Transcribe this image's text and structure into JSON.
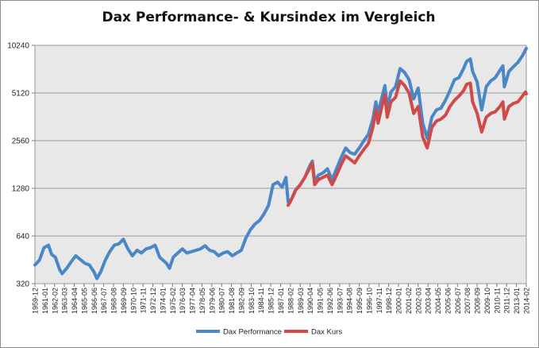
{
  "chart_data": {
    "type": "line",
    "title": "Dax Performance- & Kursindex im Vergleich",
    "xlabel": "",
    "ylabel": "",
    "yscale": "log2",
    "yticks": [
      320,
      640,
      1280,
      2560,
      5120,
      10240
    ],
    "ylim": [
      320,
      10240
    ],
    "xlim": [
      "1959-12",
      "2014-02"
    ],
    "grid": "horizontal",
    "legend_position": "bottom",
    "xtick_labels": [
      "1959-12",
      "1961-01",
      "1962-02",
      "1963-03",
      "1964-04",
      "1965-05",
      "1966-06",
      "1967-07",
      "1968-08",
      "1969-09",
      "1970-10",
      "1971-11",
      "1972-12",
      "1974-01",
      "1975-02",
      "1976-03",
      "1977-04",
      "1978-05",
      "1979-06",
      "1980-07",
      "1981-08",
      "1982-09",
      "1983-10",
      "1984-11",
      "1985-12",
      "1987-01",
      "1988-02",
      "1989-03",
      "1990-04",
      "1991-05",
      "1992-06",
      "1993-07",
      "1994-08",
      "1995-09",
      "1996-10",
      "1997-11",
      "1998-12",
      "2000-01",
      "2001-02",
      "2002-03",
      "2003-04",
      "2004-05",
      "2005-06",
      "2006-07",
      "2007-08",
      "2008-09",
      "2009-10",
      "2010-11",
      "2011-12",
      "2013-01",
      "2014-02"
    ],
    "series": [
      {
        "name": "Dax Performance",
        "color": "#4a87c7",
        "points": [
          [
            "1959-12",
            420
          ],
          [
            "1960-06",
            450
          ],
          [
            "1960-12",
            540
          ],
          [
            "1961-06",
            560
          ],
          [
            "1961-10",
            490
          ],
          [
            "1962-03",
            470
          ],
          [
            "1962-09",
            390
          ],
          [
            "1962-12",
            370
          ],
          [
            "1963-06",
            400
          ],
          [
            "1963-12",
            440
          ],
          [
            "1964-06",
            480
          ],
          [
            "1964-12",
            455
          ],
          [
            "1965-06",
            430
          ],
          [
            "1965-12",
            420
          ],
          [
            "1966-06",
            380
          ],
          [
            "1966-10",
            345
          ],
          [
            "1967-03",
            380
          ],
          [
            "1967-09",
            450
          ],
          [
            "1968-03",
            510
          ],
          [
            "1968-09",
            560
          ],
          [
            "1969-03",
            570
          ],
          [
            "1969-09",
            610
          ],
          [
            "1970-03",
            530
          ],
          [
            "1970-09",
            480
          ],
          [
            "1971-03",
            520
          ],
          [
            "1971-09",
            500
          ],
          [
            "1972-03",
            530
          ],
          [
            "1972-09",
            540
          ],
          [
            "1973-03",
            560
          ],
          [
            "1973-09",
            470
          ],
          [
            "1974-06",
            430
          ],
          [
            "1974-10",
            400
          ],
          [
            "1975-03",
            470
          ],
          [
            "1975-09",
            500
          ],
          [
            "1976-03",
            530
          ],
          [
            "1976-09",
            500
          ],
          [
            "1977-03",
            510
          ],
          [
            "1977-09",
            520
          ],
          [
            "1978-03",
            530
          ],
          [
            "1978-09",
            555
          ],
          [
            "1979-03",
            520
          ],
          [
            "1979-09",
            510
          ],
          [
            "1980-03",
            480
          ],
          [
            "1980-09",
            500
          ],
          [
            "1981-03",
            510
          ],
          [
            "1981-09",
            480
          ],
          [
            "1982-03",
            500
          ],
          [
            "1982-09",
            520
          ],
          [
            "1983-03",
            620
          ],
          [
            "1983-09",
            700
          ],
          [
            "1984-03",
            760
          ],
          [
            "1984-09",
            800
          ],
          [
            "1985-03",
            880
          ],
          [
            "1985-09",
            1000
          ],
          [
            "1986-03",
            1350
          ],
          [
            "1986-09",
            1400
          ],
          [
            "1987-03",
            1300
          ],
          [
            "1987-08",
            1500
          ],
          [
            "1987-11",
            1050
          ],
          [
            "1988-03",
            1080
          ],
          [
            "1988-09",
            1250
          ],
          [
            "1989-03",
            1350
          ],
          [
            "1989-09",
            1500
          ],
          [
            "1990-03",
            1750
          ],
          [
            "1990-07",
            1900
          ],
          [
            "1990-10",
            1400
          ],
          [
            "1991-03",
            1550
          ],
          [
            "1991-09",
            1600
          ],
          [
            "1992-03",
            1700
          ],
          [
            "1992-09",
            1450
          ],
          [
            "1993-03",
            1700
          ],
          [
            "1993-09",
            2000
          ],
          [
            "1994-03",
            2300
          ],
          [
            "1994-09",
            2150
          ],
          [
            "1995-03",
            2100
          ],
          [
            "1995-09",
            2300
          ],
          [
            "1996-03",
            2550
          ],
          [
            "1996-09",
            2800
          ],
          [
            "1997-03",
            3500
          ],
          [
            "1997-07",
            4500
          ],
          [
            "1997-10",
            3800
          ],
          [
            "1998-03",
            4800
          ],
          [
            "1998-07",
            5700
          ],
          [
            "1998-10",
            4100
          ],
          [
            "1999-03",
            5200
          ],
          [
            "1999-09",
            5600
          ],
          [
            "2000-03",
            7300
          ],
          [
            "2000-09",
            6900
          ],
          [
            "2001-03",
            6200
          ],
          [
            "2001-09",
            4700
          ],
          [
            "2002-03",
            5500
          ],
          [
            "2002-09",
            3300
          ],
          [
            "2003-03",
            2650
          ],
          [
            "2003-09",
            3600
          ],
          [
            "2004-03",
            4000
          ],
          [
            "2004-09",
            4100
          ],
          [
            "2005-03",
            4600
          ],
          [
            "2005-09",
            5300
          ],
          [
            "2006-03",
            6200
          ],
          [
            "2006-09",
            6400
          ],
          [
            "2007-03",
            7300
          ],
          [
            "2007-07",
            8100
          ],
          [
            "2007-12",
            8400
          ],
          [
            "2008-03",
            7000
          ],
          [
            "2008-09",
            6000
          ],
          [
            "2009-03",
            4000
          ],
          [
            "2009-09",
            5600
          ],
          [
            "2010-03",
            6100
          ],
          [
            "2010-09",
            6400
          ],
          [
            "2011-03",
            7100
          ],
          [
            "2011-07",
            7600
          ],
          [
            "2011-09",
            5600
          ],
          [
            "2012-03",
            7000
          ],
          [
            "2012-09",
            7500
          ],
          [
            "2013-03",
            8000
          ],
          [
            "2013-09",
            8800
          ],
          [
            "2014-01",
            9600
          ],
          [
            "2014-02",
            9800
          ]
        ]
      },
      {
        "name": "Dax Kurs",
        "color": "#d04a4a",
        "points": [
          [
            "1987-11",
            1000
          ],
          [
            "1988-03",
            1080
          ],
          [
            "1988-09",
            1250
          ],
          [
            "1989-03",
            1350
          ],
          [
            "1989-09",
            1500
          ],
          [
            "1990-03",
            1700
          ],
          [
            "1990-07",
            1850
          ],
          [
            "1990-10",
            1350
          ],
          [
            "1991-03",
            1450
          ],
          [
            "1991-09",
            1500
          ],
          [
            "1992-03",
            1550
          ],
          [
            "1992-09",
            1350
          ],
          [
            "1993-03",
            1550
          ],
          [
            "1993-09",
            1800
          ],
          [
            "1994-03",
            2050
          ],
          [
            "1994-09",
            1950
          ],
          [
            "1995-03",
            1850
          ],
          [
            "1995-09",
            2050
          ],
          [
            "1996-03",
            2250
          ],
          [
            "1996-09",
            2450
          ],
          [
            "1997-03",
            3100
          ],
          [
            "1997-07",
            4000
          ],
          [
            "1997-10",
            3300
          ],
          [
            "1998-03",
            4200
          ],
          [
            "1998-07",
            5000
          ],
          [
            "1998-10",
            3600
          ],
          [
            "1999-03",
            4500
          ],
          [
            "1999-09",
            4800
          ],
          [
            "2000-03",
            6100
          ],
          [
            "2000-09",
            5700
          ],
          [
            "2001-03",
            5100
          ],
          [
            "2001-09",
            3800
          ],
          [
            "2002-03",
            4200
          ],
          [
            "2002-09",
            2700
          ],
          [
            "2003-03",
            2300
          ],
          [
            "2003-09",
            3100
          ],
          [
            "2004-03",
            3400
          ],
          [
            "2004-09",
            3500
          ],
          [
            "2005-03",
            3700
          ],
          [
            "2005-09",
            4200
          ],
          [
            "2006-03",
            4600
          ],
          [
            "2006-09",
            4900
          ],
          [
            "2007-03",
            5300
          ],
          [
            "2007-07",
            5800
          ],
          [
            "2007-12",
            5900
          ],
          [
            "2008-03",
            4500
          ],
          [
            "2008-09",
            3800
          ],
          [
            "2009-03",
            2900
          ],
          [
            "2009-09",
            3600
          ],
          [
            "2010-03",
            3800
          ],
          [
            "2010-09",
            3900
          ],
          [
            "2011-03",
            4200
          ],
          [
            "2011-07",
            4500
          ],
          [
            "2011-09",
            3500
          ],
          [
            "2012-03",
            4200
          ],
          [
            "2012-09",
            4400
          ],
          [
            "2013-03",
            4500
          ],
          [
            "2013-09",
            4900
          ],
          [
            "2014-01",
            5200
          ],
          [
            "2014-02",
            5050
          ]
        ]
      }
    ]
  }
}
